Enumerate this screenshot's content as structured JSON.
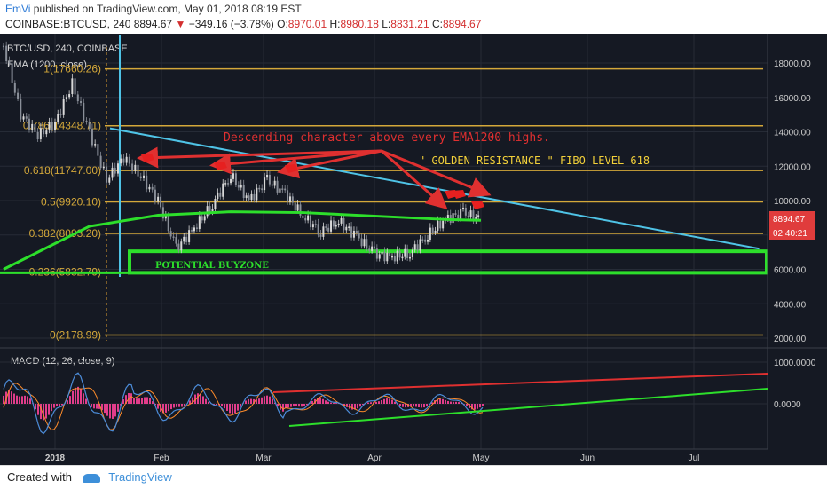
{
  "header": {
    "user": "EmVi",
    "published_text": "published on TradingView.com, May 01, 2018 08:19 EST",
    "symbol": "COINBASE:BTCUSD, 240",
    "last": "8894.67",
    "change_arrow": "▼",
    "change": "−349.16 (−3.78%)",
    "o_label": "O:",
    "o_value": "8970.01",
    "h_label": "H:",
    "h_value": "8980.18",
    "l_label": "L:",
    "l_value": "8831.21",
    "c_label": "C:",
    "c_value": "8894.67"
  },
  "chart": {
    "symbol_label": "BTC/USD, 240, COINBASE",
    "ema_label": "EMA (1200, close)",
    "annotation_main": "Descending character  above every EMA1200 highs.",
    "annotation_golden": "\" GOLDEN RESISTANCE \" FIBO LEVEL 618",
    "buyzone_label": "POTENTIAL BUYZONE",
    "price_badge": "8894.67",
    "time_badge": "02:40:21",
    "macd_label": "MACD (12, 26, close, 9)"
  },
  "chart_data": {
    "type": "line",
    "title": "BTC/USD, 240, COINBASE",
    "ylim": [
      1500,
      19200
    ],
    "y_ticks": [
      2000,
      4000,
      6000,
      8000,
      10000,
      12000,
      14000,
      16000,
      18000
    ],
    "y_tick_labels": [
      "2000.00",
      "4000.00",
      "6000.00",
      "8000.00",
      "10000.00",
      "12000.00",
      "14000.00",
      "16000.00",
      "18000.00"
    ],
    "x_tick_labels": [
      "2018",
      "Feb",
      "Mar",
      "Apr",
      "May",
      "Jun",
      "Jul"
    ],
    "fib_levels": [
      {
        "label": "1(17660.26)",
        "value": 17660.26
      },
      {
        "label": "0.786(14348.71)",
        "value": 14348.71
      },
      {
        "label": "0.618(11747.00)",
        "value": 11747.0
      },
      {
        "label": "0.5(9920.10)",
        "value": 9920.1
      },
      {
        "label": "0.382(8093.20)",
        "value": 8093.2
      },
      {
        "label": "0.236(5832.79)",
        "value": 5832.79
      },
      {
        "label": "0(2178.99)",
        "value": 2178.99
      }
    ],
    "price_series": {
      "x": [
        "Dec 17",
        "Dec 22",
        "Dec 27",
        "Jan 01",
        "Jan 06",
        "Jan 11",
        "Jan 16",
        "Jan 21",
        "Jan 26",
        "Jan 31",
        "Feb 05",
        "Feb 10",
        "Feb 15",
        "Feb 20",
        "Feb 25",
        "Mar 02",
        "Mar 07",
        "Mar 12",
        "Mar 17",
        "Mar 22",
        "Mar 27",
        "Apr 01",
        "Apr 06",
        "Apr 11",
        "Apr 16",
        "Apr 21",
        "Apr 26",
        "May 01"
      ],
      "y": [
        19000,
        15000,
        13800,
        14500,
        16800,
        14000,
        11200,
        12500,
        11400,
        10000,
        7200,
        8400,
        9800,
        11500,
        10000,
        11200,
        10400,
        9100,
        8200,
        8800,
        7900,
        6900,
        6700,
        6950,
        8000,
        8900,
        9300,
        8894.67
      ]
    },
    "ema1200": {
      "x": [
        "Dec 17",
        "Jan 11",
        "Jan 31",
        "Feb 20",
        "Mar 12",
        "Apr 01",
        "Apr 21",
        "May 01"
      ],
      "y": [
        6000,
        8500,
        9150,
        9350,
        9300,
        9100,
        8900,
        8850
      ]
    },
    "buyzone": [
      5800,
      7050
    ],
    "trendline_cyan": {
      "from": [
        "Jan 17",
        14200
      ],
      "to": [
        "Jul 20",
        7200
      ]
    },
    "macd": {
      "ylim": [
        -1200,
        1300
      ],
      "y_ticks": [
        0,
        1000
      ],
      "y_tick_labels": [
        "0.0000",
        "1000.0000"
      ]
    },
    "colors": {
      "background": "#151923",
      "fib": "#d4a83a",
      "ema": "#2ddf2b",
      "buyzone": "#2ddf2b",
      "trendline": "#4fc3e6",
      "annotation": "#e03030",
      "macd_line": "#4c8cd9",
      "signal_line": "#ff8c2a",
      "histogram": "#e23d8b"
    }
  },
  "footer": {
    "created_with": "Created with",
    "brand": "TradingView"
  }
}
